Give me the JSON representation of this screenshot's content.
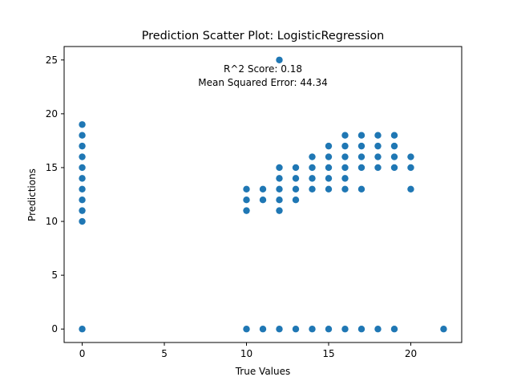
{
  "chart_data": {
    "type": "scatter",
    "title": "Prediction Scatter Plot: LogisticRegression",
    "xlabel": "True Values",
    "ylabel": "Predictions",
    "xlim": [
      -1.1,
      23.1
    ],
    "ylim": [
      -1.25,
      26.25
    ],
    "xticks": [
      0,
      5,
      10,
      15,
      20
    ],
    "yticks": [
      0,
      5,
      10,
      15,
      20,
      25
    ],
    "grid": false,
    "color": "#1f77b4",
    "annotations": [
      "R^2 Score: 0.18",
      "Mean Squared Error: 44.34"
    ],
    "points": [
      [
        0,
        0
      ],
      [
        0,
        10
      ],
      [
        0,
        11
      ],
      [
        0,
        12
      ],
      [
        0,
        13
      ],
      [
        0,
        14
      ],
      [
        0,
        15
      ],
      [
        0,
        16
      ],
      [
        0,
        17
      ],
      [
        0,
        18
      ],
      [
        0,
        19
      ],
      [
        10,
        0
      ],
      [
        10,
        11
      ],
      [
        10,
        12
      ],
      [
        10,
        13
      ],
      [
        11,
        0
      ],
      [
        11,
        12
      ],
      [
        11,
        13
      ],
      [
        12,
        0
      ],
      [
        12,
        11
      ],
      [
        12,
        12
      ],
      [
        12,
        13
      ],
      [
        12,
        14
      ],
      [
        12,
        15
      ],
      [
        12,
        25
      ],
      [
        13,
        0
      ],
      [
        13,
        12
      ],
      [
        13,
        13
      ],
      [
        13,
        14
      ],
      [
        13,
        15
      ],
      [
        14,
        0
      ],
      [
        14,
        13
      ],
      [
        14,
        14
      ],
      [
        14,
        15
      ],
      [
        14,
        16
      ],
      [
        15,
        0
      ],
      [
        15,
        13
      ],
      [
        15,
        14
      ],
      [
        15,
        15
      ],
      [
        15,
        16
      ],
      [
        15,
        17
      ],
      [
        16,
        0
      ],
      [
        16,
        13
      ],
      [
        16,
        14
      ],
      [
        16,
        15
      ],
      [
        16,
        16
      ],
      [
        16,
        17
      ],
      [
        16,
        18
      ],
      [
        17,
        0
      ],
      [
        17,
        13
      ],
      [
        17,
        15
      ],
      [
        17,
        16
      ],
      [
        17,
        17
      ],
      [
        17,
        18
      ],
      [
        18,
        0
      ],
      [
        18,
        15
      ],
      [
        18,
        16
      ],
      [
        18,
        17
      ],
      [
        18,
        18
      ],
      [
        19,
        0
      ],
      [
        19,
        15
      ],
      [
        19,
        16
      ],
      [
        19,
        17
      ],
      [
        19,
        18
      ],
      [
        20,
        13
      ],
      [
        20,
        15
      ],
      [
        20,
        16
      ],
      [
        22,
        0
      ]
    ]
  }
}
